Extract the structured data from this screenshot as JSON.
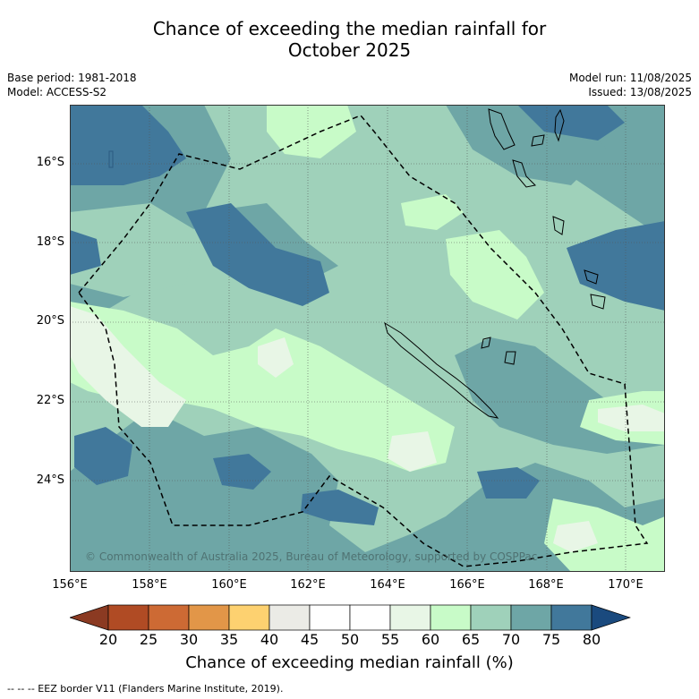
{
  "title_line1": "Chance of exceeding the median rainfall for",
  "title_line2": "October 2025",
  "meta_left": {
    "base_period": "Base period: 1981-2018",
    "model": "Model: ACCESS-S2"
  },
  "meta_right": {
    "model_run": "Model run: 11/08/2025",
    "issued": "Issued: 13/08/2025"
  },
  "map": {
    "lat_labels": [
      "16°S",
      "18°S",
      "20°S",
      "22°S",
      "24°S"
    ],
    "lon_labels": [
      "156°E",
      "158°E",
      "160°E",
      "162°E",
      "164°E",
      "166°E",
      "168°E",
      "170°E"
    ],
    "copyright": "© Commonwealth of Australia 2025, Bureau of Meteorology, supported by COSPPac",
    "region_extent": {
      "lon_min": 156.0,
      "lon_max": 171.0,
      "lat_min": -26.3,
      "lat_max": -14.5
    }
  },
  "colorbar": {
    "ticks": [
      "20",
      "25",
      "30",
      "35",
      "40",
      "45",
      "50",
      "55",
      "60",
      "65",
      "70",
      "75",
      "80"
    ],
    "colors": [
      "#8b3a22",
      "#b04b24",
      "#cd6a34",
      "#e29648",
      "#fdd170",
      "#ebebe6",
      "#ffffff",
      "#ffffff",
      "#e8f6e6",
      "#c8fbc8",
      "#9fd1ba",
      "#6ea6a6",
      "#41789b",
      "#1a4a7e"
    ],
    "label": "Chance of exceeding median rainfall (%)"
  },
  "footnote": "--  --  -- EEZ border V11 (Flanders Marine Institute, 2019)."
}
